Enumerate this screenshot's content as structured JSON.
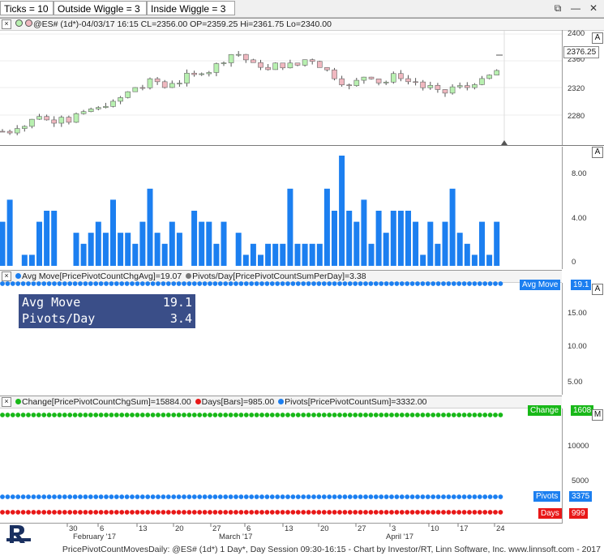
{
  "toolbar": {
    "ticks_label": "Ticks = 10",
    "outside_label": "Outside Wiggle = 3",
    "inside_label": "Inside Wiggle = 3"
  },
  "price_pane": {
    "header": "@ES# (1d*)-04/03/17 16:15 CL=2356.00 OP=2359.25 Hi=2361.75 Lo=2340.00",
    "last_price": "2376.25",
    "ticks": [
      "2400",
      "2360",
      "2320",
      "2280"
    ]
  },
  "pivots_bar_pane": {
    "ticks": [
      "8.00",
      "4.00",
      "0"
    ]
  },
  "avg_pane": {
    "header_avg": "Avg Move[PricePivotCountChgAvg]=19.07",
    "header_pivots": "Pivots/Day[PricePivotCountSumPerDay]=3.38",
    "tag_label": "Avg Move",
    "tag_value": "19.1",
    "ticks": [
      "15.00",
      "10.00",
      "5.00"
    ],
    "infobox": {
      "row1_label": "Avg Move",
      "row1_value": "19.1",
      "row2_label": "Pivots/Day",
      "row2_value": "3.4"
    }
  },
  "sum_pane": {
    "header_change": "Change[PricePivotCountChgSum]=15884.00",
    "header_days": "Days[Bars]=985.00",
    "header_pivots": "Pivots[PricePivotCountSum]=3332.00",
    "change_tag_label": "Change",
    "change_tag_value": "1608",
    "pivots_tag_label": "Pivots",
    "pivots_tag_value": "3375",
    "days_tag_label": "Days",
    "days_tag_value": "999",
    "ticks": [
      "10000",
      "5000"
    ]
  },
  "x_axis": {
    "day_labels": [
      "30",
      "6",
      "13",
      "20",
      "27",
      "6",
      "13",
      "20",
      "27",
      "3",
      "10",
      "17",
      "24"
    ],
    "month_labels": [
      "February '17",
      "March '17",
      "April '17"
    ]
  },
  "footer": "PricePivotCountMovesDaily: @ES# (1d*) 1 Day*, Day Session 09:30-16:15 - Chart by Investor/RT, Linn Software, Inc. www.linnsoft.com - 2017",
  "colors": {
    "up_candle": "#b8f0b0",
    "down_candle": "#f0b8c0",
    "bar_blue": "#1c7ff0",
    "dot_green": "#18b818",
    "dot_blue": "#1c7ff0",
    "dot_red": "#e81818",
    "info_bg": "#3a4e88"
  },
  "pivot_counts": [
    4,
    6,
    0,
    1,
    1,
    4,
    5,
    5,
    0,
    0,
    3,
    2,
    3,
    4,
    3,
    6,
    3,
    3,
    2,
    4,
    7,
    3,
    2,
    4,
    3,
    0,
    5,
    4,
    4,
    2,
    4,
    0,
    3,
    1,
    2,
    1,
    2,
    2,
    2,
    7,
    2,
    2,
    2,
    2,
    7,
    5,
    10,
    5,
    4,
    6,
    2,
    5,
    3,
    5,
    5,
    5,
    4,
    1,
    4,
    2,
    4,
    7,
    3,
    2,
    1,
    4,
    1,
    4
  ]
}
